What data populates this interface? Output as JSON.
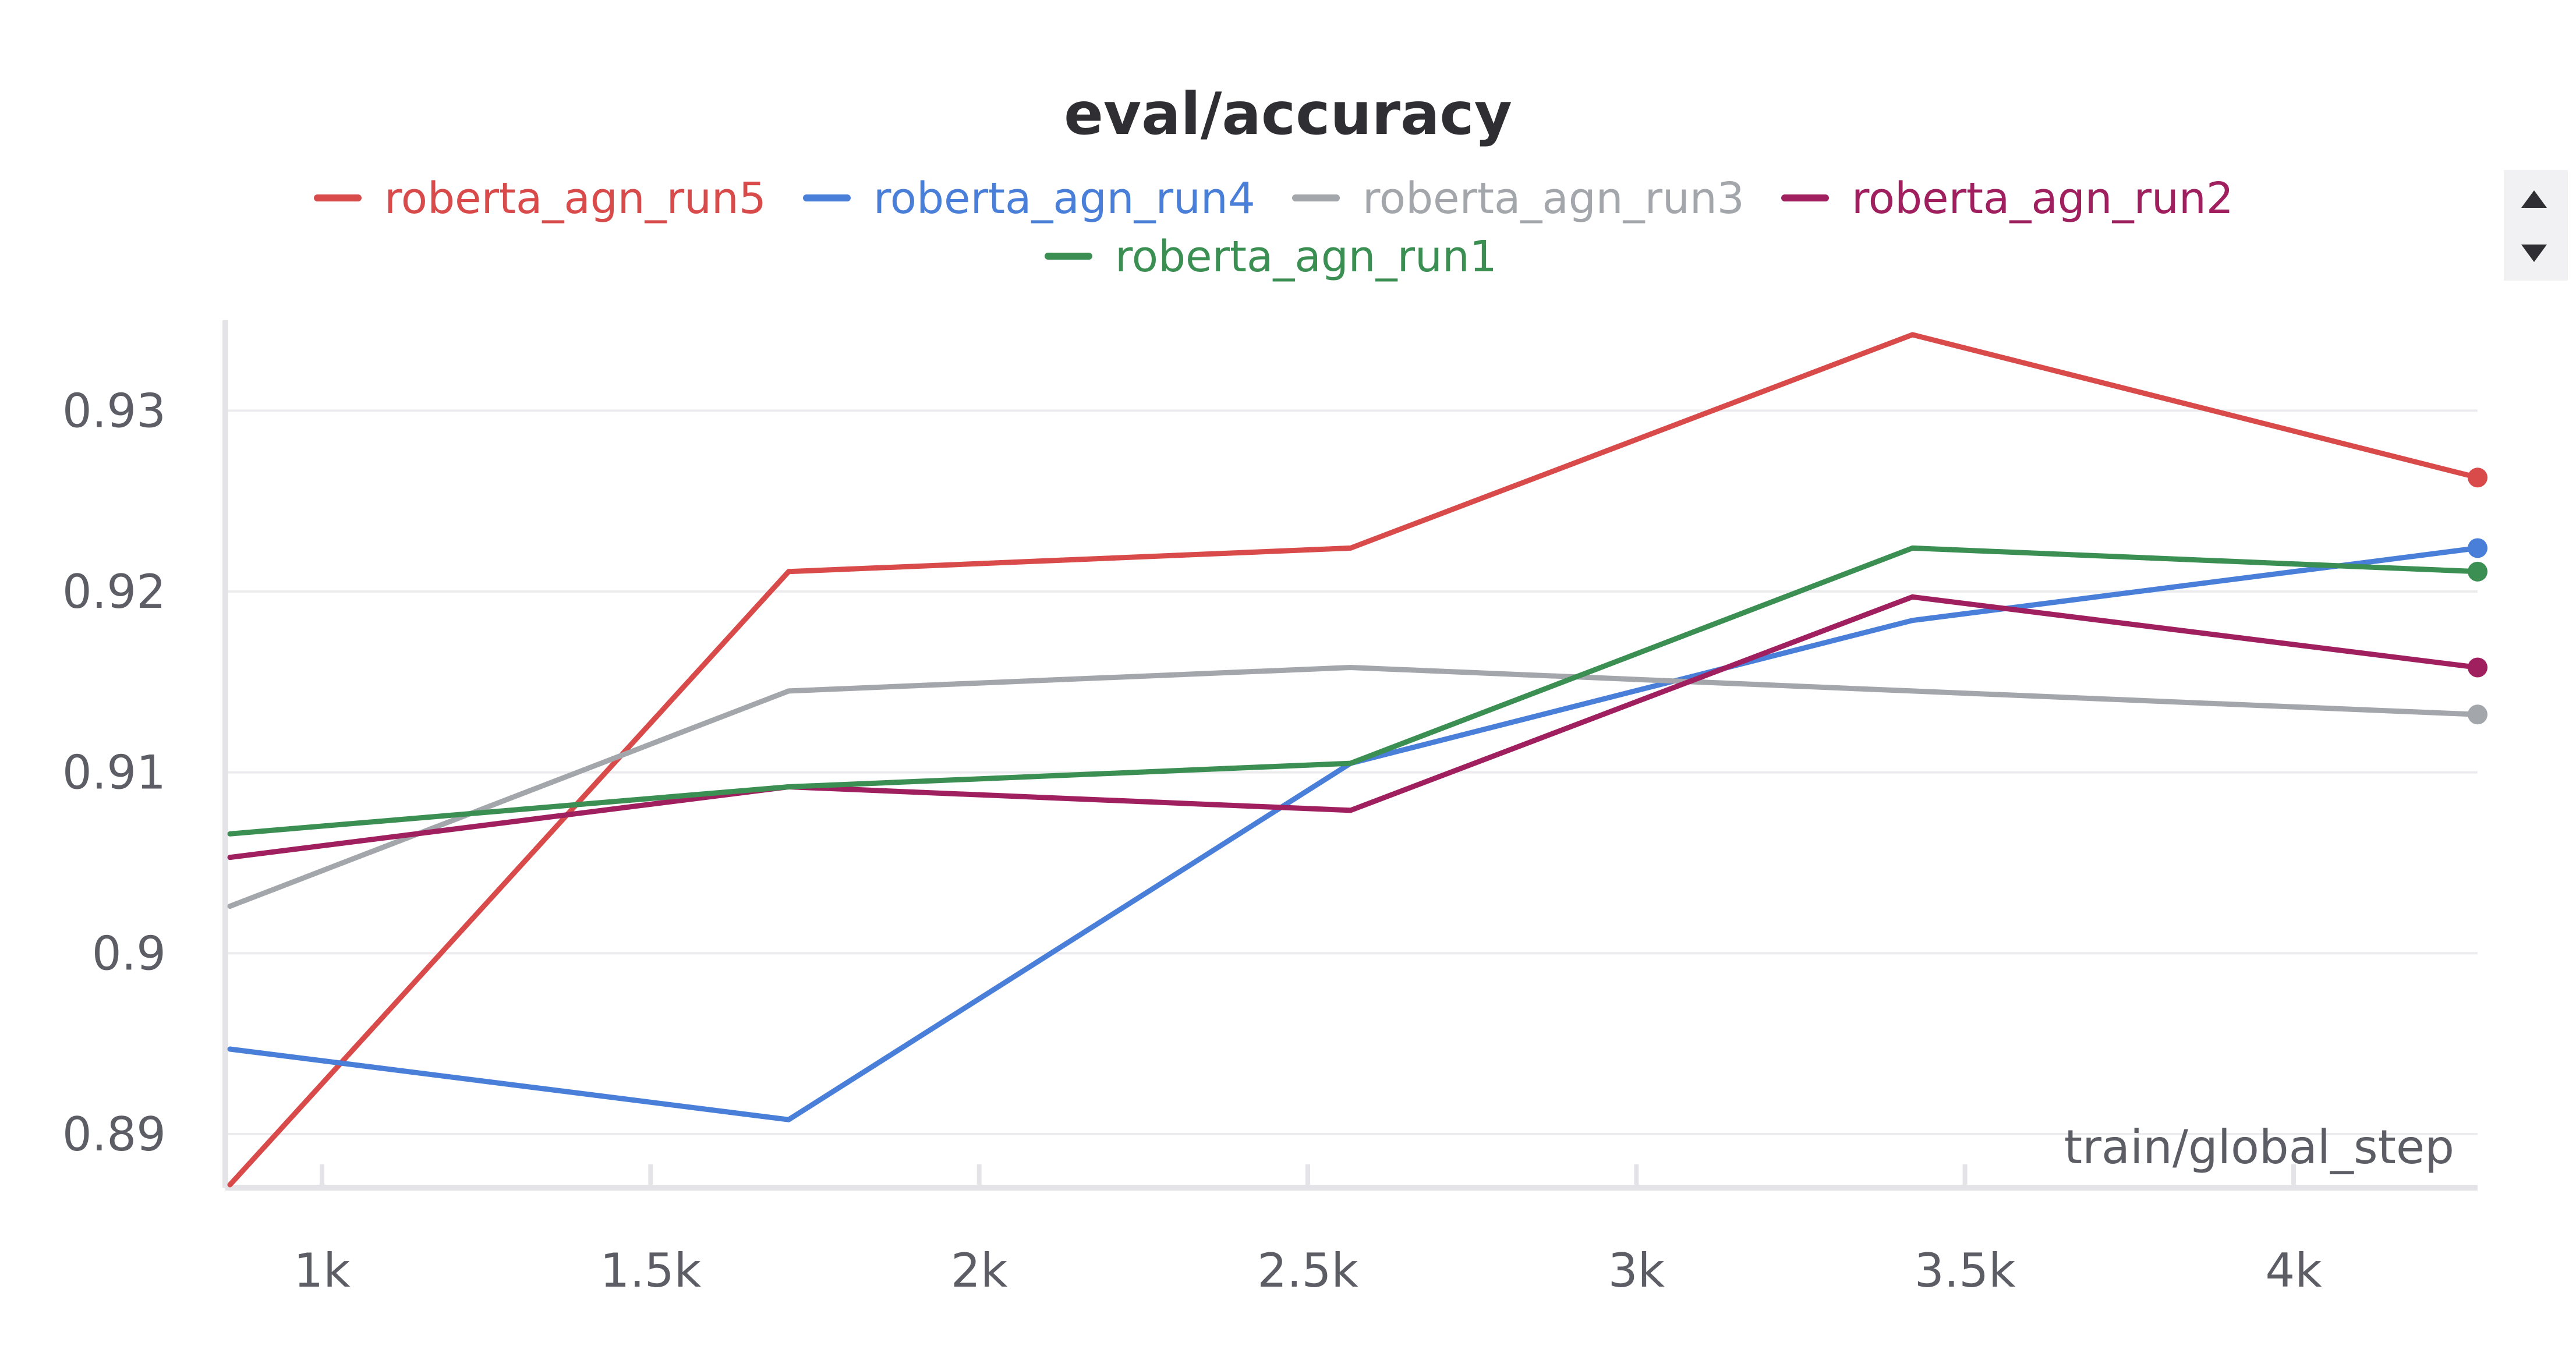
{
  "chart_data": {
    "type": "line",
    "title": "eval/accuracy",
    "xlabel": "train/global_step",
    "ylabel": "",
    "xlim": [
      860,
      4280
    ],
    "ylim": [
      0.8872,
      0.935
    ],
    "x_ticks": [
      {
        "value": 1000,
        "label": "1k"
      },
      {
        "value": 1500,
        "label": "1.5k"
      },
      {
        "value": 2000,
        "label": "2k"
      },
      {
        "value": 2500,
        "label": "2.5k"
      },
      {
        "value": 3000,
        "label": "3k"
      },
      {
        "value": 3500,
        "label": "3.5k"
      },
      {
        "value": 4000,
        "label": "4k"
      }
    ],
    "y_ticks": [
      {
        "value": 0.89,
        "label": "0.89"
      },
      {
        "value": 0.9,
        "label": "0.9"
      },
      {
        "value": 0.91,
        "label": "0.91"
      },
      {
        "value": 0.92,
        "label": "0.92"
      },
      {
        "value": 0.93,
        "label": "0.93"
      }
    ],
    "grid": true,
    "legend_position": "top-center",
    "series": [
      {
        "name": "roberta_agn_run5",
        "color": "#d94a4a",
        "x": [
          860,
          1710,
          2565,
          3420,
          4280
        ],
        "y": [
          0.8872,
          0.9211,
          0.9224,
          0.9342,
          0.9263
        ]
      },
      {
        "name": "roberta_agn_run4",
        "color": "#4a7fd9",
        "x": [
          860,
          1710,
          2565,
          3420,
          4280
        ],
        "y": [
          0.8947,
          0.8908,
          0.9105,
          0.9184,
          0.9224
        ]
      },
      {
        "name": "roberta_agn_run3",
        "color": "#a3a6ab",
        "x": [
          860,
          1710,
          2565,
          3420,
          4280
        ],
        "y": [
          0.9026,
          0.9145,
          0.9158,
          0.9145,
          0.9132
        ]
      },
      {
        "name": "roberta_agn_run2",
        "color": "#a0205f",
        "x": [
          860,
          1710,
          2565,
          3420,
          4280
        ],
        "y": [
          0.9053,
          0.9092,
          0.9079,
          0.9197,
          0.9158
        ]
      },
      {
        "name": "roberta_agn_run1",
        "color": "#3b8f52",
        "x": [
          860,
          1710,
          2565,
          3420,
          4280
        ],
        "y": [
          0.9066,
          0.9092,
          0.9105,
          0.9224,
          0.9211
        ]
      }
    ]
  },
  "legend_scroll": {
    "up_icon": "triangle-up",
    "down_icon": "triangle-down"
  }
}
